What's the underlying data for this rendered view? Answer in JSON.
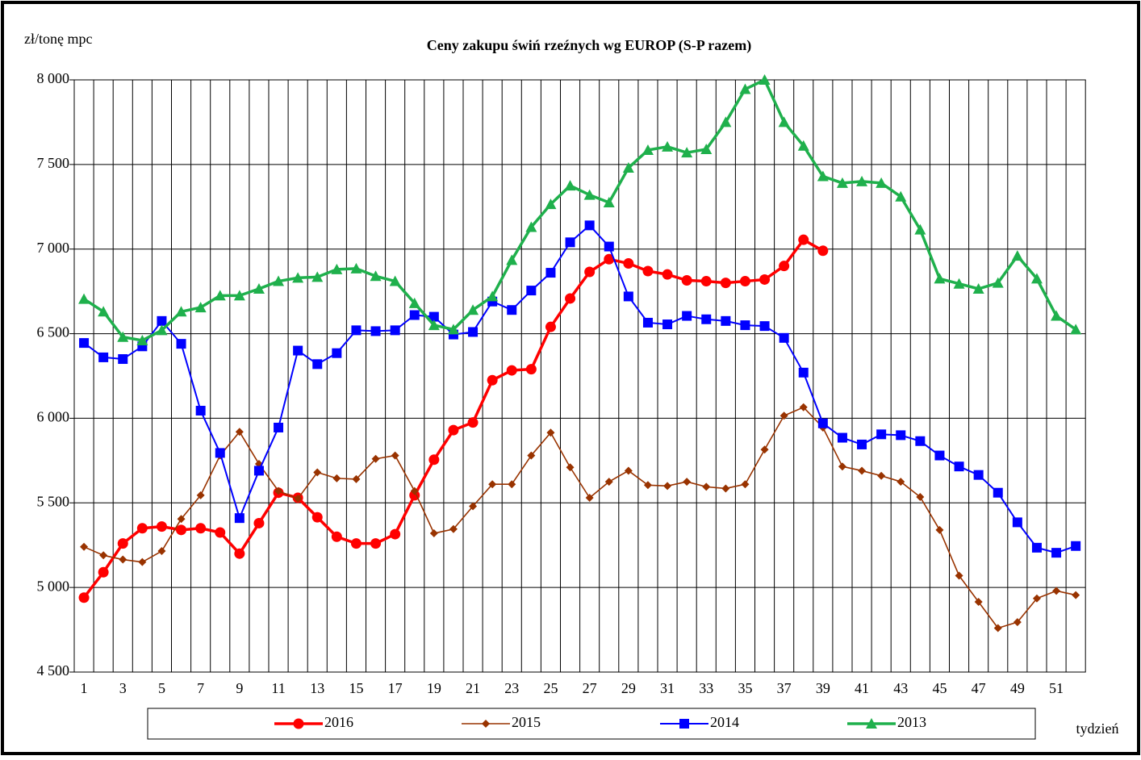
{
  "chart_data": {
    "type": "line",
    "title": "Ceny zakupu świń rzeźnych  wg EUROP (S-P razem)",
    "y_label": "zł/tonę  mpc",
    "x_label": "tydzień",
    "categories": [
      1,
      null,
      3,
      null,
      5,
      null,
      7,
      null,
      9,
      null,
      11,
      null,
      13,
      null,
      15,
      null,
      17,
      null,
      19,
      null,
      21,
      null,
      23,
      null,
      25,
      null,
      27,
      null,
      29,
      null,
      31,
      null,
      33,
      null,
      35,
      null,
      37,
      null,
      39,
      null,
      41,
      null,
      43,
      null,
      45,
      null,
      47,
      null,
      49,
      null,
      51,
      null
    ],
    "ylim": [
      4500,
      8000
    ],
    "yticks": [
      {
        "value": 4500,
        "label": "4 500"
      },
      {
        "value": 5000,
        "label": "5 000"
      },
      {
        "value": 5500,
        "label": "5 500"
      },
      {
        "value": 6000,
        "label": "6 000"
      },
      {
        "value": 6500,
        "label": "6 500"
      },
      {
        "value": 7000,
        "label": "7 000"
      },
      {
        "value": 7500,
        "label": "7 500"
      },
      {
        "value": 8000,
        "label": "8 000"
      }
    ],
    "grid": true,
    "legend": "bottom",
    "series": [
      {
        "name": "2016",
        "color": "#ff0000",
        "marker": "circle",
        "values": [
          4940,
          5090,
          5260,
          5350,
          5360,
          5340,
          5350,
          5325,
          5200,
          5380,
          5560,
          5530,
          5415,
          5300,
          5260,
          5260,
          5315,
          5545,
          5755,
          5930,
          5975,
          6225,
          6283,
          6290,
          6540,
          6708,
          6865,
          6940,
          6915,
          6870,
          6850,
          6815,
          6810,
          6800,
          6810,
          6820,
          6900,
          7055,
          6990,
          null,
          null,
          null,
          null,
          null,
          null,
          null,
          null,
          null,
          null,
          null,
          null,
          null
        ]
      },
      {
        "name": "2015",
        "color": "#993300",
        "marker": "diamond",
        "values": [
          5240,
          5190,
          5165,
          5150,
          5215,
          5405,
          5545,
          5780,
          5920,
          5730,
          5570,
          5525,
          5680,
          5645,
          5640,
          5760,
          5780,
          5570,
          5320,
          5345,
          5480,
          5610,
          5610,
          5780,
          5915,
          5710,
          5530,
          5625,
          5690,
          5605,
          5600,
          5625,
          5595,
          5585,
          5610,
          5815,
          6015,
          6065,
          5945,
          5715,
          5690,
          5660,
          5625,
          5535,
          5340,
          5070,
          4915,
          4760,
          4795,
          4935,
          4980,
          4955
        ]
      },
      {
        "name": "2014",
        "color": "#0000ff",
        "marker": "square",
        "values": [
          6445,
          6360,
          6350,
          6425,
          6575,
          6440,
          6045,
          5795,
          5410,
          5690,
          5945,
          6400,
          6320,
          6385,
          6520,
          6515,
          6520,
          6610,
          6600,
          6495,
          6510,
          6690,
          6640,
          6755,
          6860,
          7040,
          7140,
          7015,
          6720,
          6565,
          6555,
          6605,
          6585,
          6575,
          6550,
          6545,
          6475,
          6270,
          5970,
          5885,
          5845,
          5905,
          5900,
          5865,
          5780,
          5715,
          5665,
          5560,
          5385,
          5235,
          5205,
          5245
        ]
      },
      {
        "name": "2013",
        "color": "#1fb04c",
        "marker": "triangle",
        "values": [
          6705,
          6630,
          6480,
          6460,
          6520,
          6630,
          6655,
          6725,
          6725,
          6765,
          6810,
          6830,
          6835,
          6880,
          6885,
          6840,
          6810,
          6680,
          6550,
          6525,
          6640,
          6720,
          6935,
          7130,
          7265,
          7375,
          7320,
          7275,
          7480,
          7585,
          7605,
          7570,
          7590,
          7750,
          7945,
          8000,
          7750,
          7610,
          7430,
          7390,
          7400,
          7390,
          7310,
          7115,
          6825,
          6795,
          6765,
          6800,
          6960,
          6825,
          6605,
          6525
        ]
      }
    ]
  }
}
